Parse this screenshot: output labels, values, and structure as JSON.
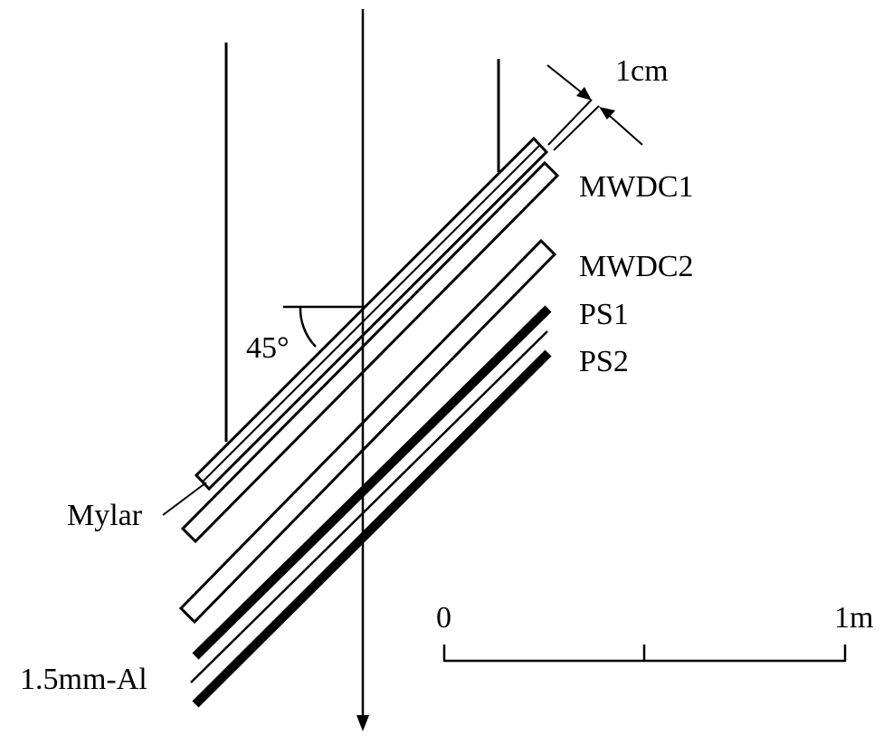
{
  "labels": {
    "gap": "1cm",
    "mwdc1": "MWDC1",
    "mwdc2": "MWDC2",
    "ps1": "PS1",
    "ps2": "PS2",
    "angle": "45°",
    "mylar": "Mylar",
    "al": "1.5mm-Al"
  },
  "scale_bar": {
    "start_label": "0",
    "end_label": "1m"
  }
}
